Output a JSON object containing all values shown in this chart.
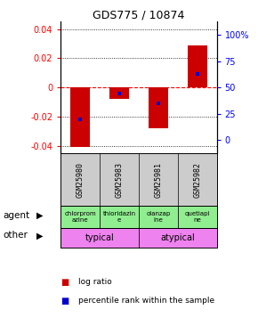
{
  "title": "GDS775 / 10874",
  "samples": [
    "GSM25980",
    "GSM25983",
    "GSM25981",
    "GSM25982"
  ],
  "log_ratios": [
    -0.041,
    -0.008,
    -0.028,
    0.029
  ],
  "percentile_ranks": [
    20,
    44,
    35,
    63
  ],
  "agents": [
    "chlorprom\nazine",
    "thioridazin\ne",
    "olanzap\nine",
    "quetiapi\nne"
  ],
  "other_labels": [
    "typical",
    "atypical"
  ],
  "other_color": "#ee82ee",
  "agent_color": "#90ee90",
  "ylim": [
    -0.045,
    0.045
  ],
  "yticks": [
    -0.04,
    -0.02,
    0.0,
    0.02,
    0.04
  ],
  "right_yticks": [
    0,
    25,
    50,
    75,
    100
  ],
  "right_ylim": [
    -12.5,
    112.5
  ],
  "bar_color": "#cc0000",
  "dot_color": "#0000cc",
  "background_color": "#ffffff",
  "sample_bg": "#cccccc",
  "bar_width": 0.5
}
